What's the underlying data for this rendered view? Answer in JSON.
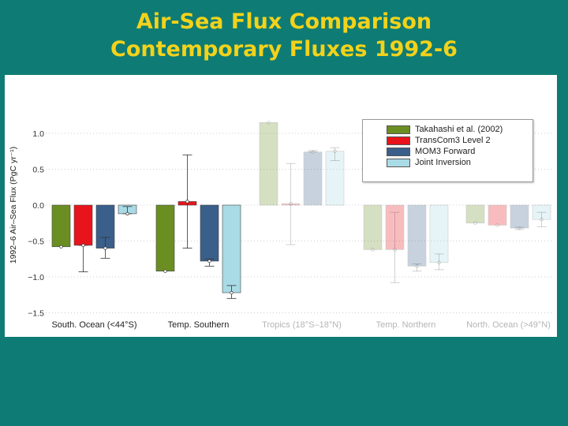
{
  "slide": {
    "title_line1": "Air-Sea Flux Comparison",
    "title_line2": "Contemporary Fluxes 1992-6"
  },
  "colors": {
    "background": "#0e7c74",
    "title": "#f2d21b",
    "takahashi": "#6b8e23",
    "transcom": "#e8141c",
    "mom3": "#3a5f8a",
    "joint": "#a9dbe6"
  },
  "chart_data": {
    "type": "bar",
    "ylabel": "1992–6 Air–Sea Flux (PgC yr⁻¹)",
    "ylim": [
      -1.5,
      1.2
    ],
    "yticks": [
      1.0,
      0.5,
      0.0,
      -0.5,
      -1.0,
      -1.5
    ],
    "ytick_labels": [
      "1.0",
      "0.5",
      "0.0",
      "−0.5",
      "−1.0",
      "−1.5"
    ],
    "grid": "dotted horizontal",
    "legend_position": "top-right",
    "categories": [
      "South. Ocean (<44°S)",
      "Temp. Southern",
      "Tropics (18°S–18°N)",
      "Temp. Northern",
      "North. Ocean (>49°N)"
    ],
    "faded_categories": [
      2,
      3,
      4
    ],
    "series": [
      {
        "name": "Takahashi et al. (2002)",
        "color": "#6b8e23",
        "values": [
          -0.58,
          -0.92,
          1.15,
          -0.62,
          -0.25
        ],
        "err_low": [
          -0.58,
          -0.92,
          1.15,
          -0.62,
          -0.25
        ],
        "err_high": [
          -0.58,
          -0.92,
          1.15,
          -0.62,
          -0.25
        ]
      },
      {
        "name": "TransCom3 Level 2",
        "color": "#e8141c",
        "values": [
          -0.56,
          0.05,
          0.02,
          -0.62,
          -0.28
        ],
        "err_low": [
          -0.93,
          -0.6,
          -0.55,
          -1.08,
          -0.28
        ],
        "err_high": [
          -0.56,
          0.7,
          0.58,
          -0.1,
          -0.28
        ]
      },
      {
        "name": "MOM3 Forward",
        "color": "#3a5f8a",
        "values": [
          -0.6,
          -0.78,
          0.74,
          -0.85,
          -0.32
        ],
        "err_low": [
          -0.74,
          -0.85,
          0.74,
          -0.92,
          -0.34
        ],
        "err_high": [
          -0.45,
          -0.75,
          0.76,
          -0.82,
          -0.31
        ]
      },
      {
        "name": "Joint Inversion",
        "color": "#a9dbe6",
        "values": [
          -0.12,
          -1.22,
          0.75,
          -0.8,
          -0.2
        ],
        "err_low": [
          -0.12,
          -1.3,
          0.62,
          -0.9,
          -0.3
        ],
        "err_high": [
          -0.02,
          -1.12,
          0.8,
          -0.68,
          -0.1
        ]
      }
    ]
  }
}
